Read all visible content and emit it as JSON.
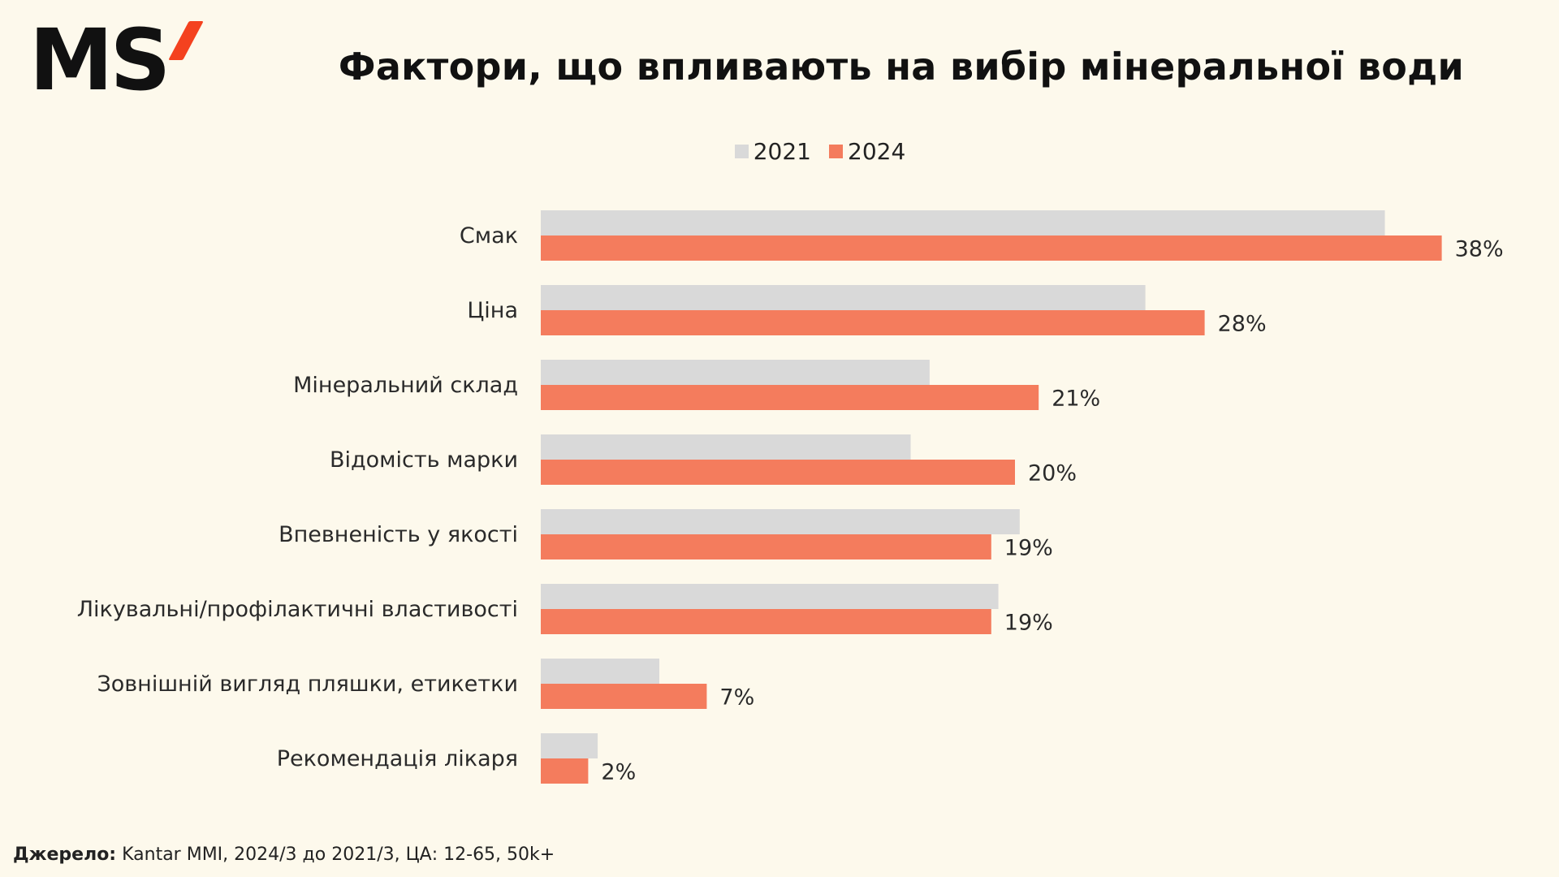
{
  "logo": {
    "text": "MS",
    "accent_color": "#f4421f"
  },
  "title": "Фактори, що впливають на вибір мінеральної води",
  "source": {
    "label": "Джерело:",
    "text": "Kantar MMI, 2024/3 до 2021/3, ЦА: 12-65, 50k+"
  },
  "colors": {
    "background": "#fdf9ec",
    "series_2021": "#d9d9d9",
    "series_2024": "#f47c5d"
  },
  "chart_data": {
    "type": "bar",
    "orientation": "horizontal",
    "title": "Фактори, що впливають на вибір мінеральної води",
    "legend_position": "top",
    "grid": false,
    "xlim": [
      0,
      40
    ],
    "categories": [
      "Смак",
      "Ціна",
      "Мінеральний склад",
      "Відомість марки",
      "Впевненість у якості",
      "Лікувальні/профілактичні властивості",
      "Зовнішній вигляд пляшки, етикетки",
      "Рекомендація лікаря"
    ],
    "series": [
      {
        "name": "2021",
        "color": "#d9d9d9",
        "values": [
          35.6,
          25.5,
          16.4,
          15.6,
          20.2,
          19.3,
          5.0,
          2.4
        ],
        "labels": []
      },
      {
        "name": "2024",
        "color": "#f47c5d",
        "values": [
          38,
          28,
          21,
          20,
          19,
          19,
          7,
          2
        ],
        "labels": [
          "38%",
          "28%",
          "21%",
          "20%",
          "19%",
          "19%",
          "7%",
          "2%"
        ]
      }
    ]
  }
}
